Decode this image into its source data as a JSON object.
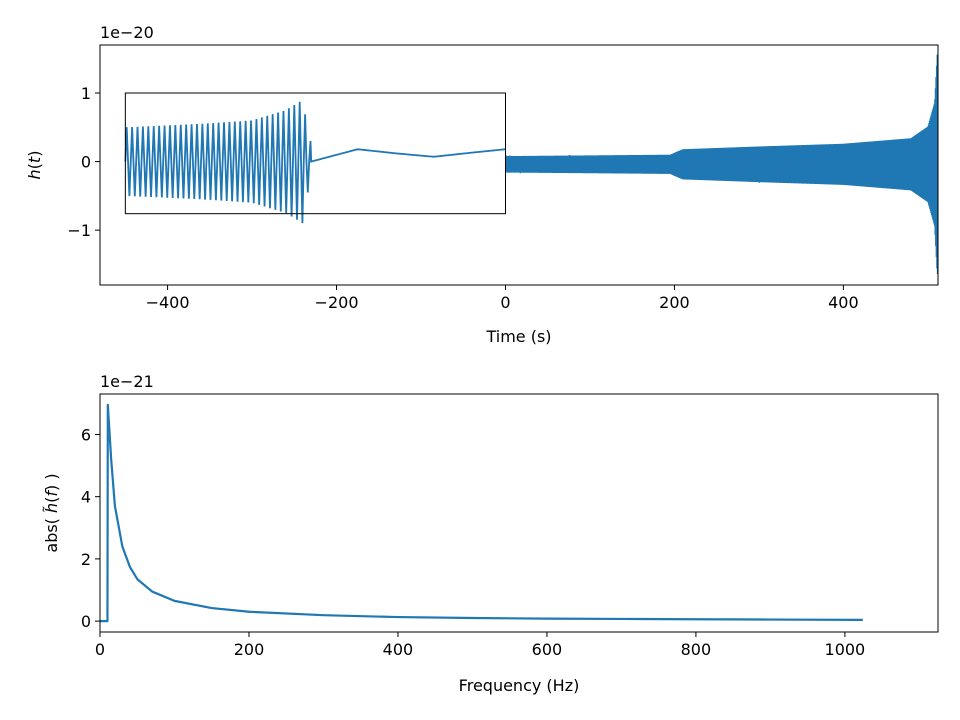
{
  "chart_data": [
    {
      "type": "line",
      "xlabel": "Time (s)",
      "ylabel": "h(t)",
      "ylabel_parts": {
        "name": "h",
        "arg": "t"
      },
      "y_offset_label": "1e−20",
      "xlim": [
        -480,
        512
      ],
      "ylim": [
        -1.8,
        1.7
      ],
      "xticks": [
        -400,
        -200,
        0,
        200,
        400
      ],
      "xtick_labels": [
        "−400",
        "−200",
        "0",
        "200",
        "400"
      ],
      "yticks": [
        -1,
        0,
        1
      ],
      "ytick_labels": [
        "−1",
        "0",
        "1"
      ],
      "color": "#1f77b4",
      "grid": false,
      "envelope": [
        {
          "t": 0,
          "amp": 0.12
        },
        {
          "t": 100,
          "amp": 0.13
        },
        {
          "t": 195,
          "amp": 0.14
        },
        {
          "t": 210,
          "amp": 0.22
        },
        {
          "t": 300,
          "amp": 0.26
        },
        {
          "t": 400,
          "amp": 0.3
        },
        {
          "t": 480,
          "amp": 0.38
        },
        {
          "t": 500,
          "amp": 0.55
        },
        {
          "t": 508,
          "amp": 0.9
        },
        {
          "t": 511,
          "amp": 1.6
        }
      ],
      "envelope_center": -0.04,
      "inset": {
        "x_range": [
          -450,
          0
        ],
        "y_range": [
          -0.76,
          1.0
        ],
        "burst_envelope": [
          {
            "t": -450,
            "amp": 0.5
          },
          {
            "t": -360,
            "amp": 0.55
          },
          {
            "t": -300,
            "amp": 0.6
          },
          {
            "t": -260,
            "amp": 0.75
          },
          {
            "t": -240,
            "amp": 0.9
          },
          {
            "t": -232,
            "amp": 0.3
          }
        ],
        "burst_end": -230,
        "smooth_wave": [
          {
            "t": -230,
            "v": 0.0
          },
          {
            "t": -175,
            "v": 0.18
          },
          {
            "t": -130,
            "v": 0.12
          },
          {
            "t": -85,
            "v": 0.07
          },
          {
            "t": -40,
            "v": 0.13
          },
          {
            "t": 0,
            "v": 0.18
          }
        ]
      }
    },
    {
      "type": "line",
      "xlabel": "Frequency (Hz)",
      "ylabel": "abs( h̃(f) )",
      "ylabel_parts": {
        "prefix": "abs( ",
        "name": "h̃",
        "arg": "f",
        "suffix": " )"
      },
      "y_offset_label": "1e−21",
      "xlim": [
        0,
        1125
      ],
      "ylim": [
        -0.35,
        7.3
      ],
      "xticks": [
        0,
        200,
        400,
        600,
        800,
        1000
      ],
      "xtick_labels": [
        "0",
        "200",
        "400",
        "600",
        "800",
        "1000"
      ],
      "yticks": [
        0,
        2,
        4,
        6
      ],
      "ytick_labels": [
        "0",
        "2",
        "4",
        "6"
      ],
      "color": "#1f77b4",
      "grid": false,
      "points": [
        {
          "x": 0,
          "y": 0.0
        },
        {
          "x": 10,
          "y": 0.0
        },
        {
          "x": 10.5,
          "y": 6.95
        },
        {
          "x": 15,
          "y": 5.2
        },
        {
          "x": 20,
          "y": 3.7
        },
        {
          "x": 30,
          "y": 2.4
        },
        {
          "x": 40,
          "y": 1.75
        },
        {
          "x": 50,
          "y": 1.35
        },
        {
          "x": 70,
          "y": 0.95
        },
        {
          "x": 100,
          "y": 0.65
        },
        {
          "x": 150,
          "y": 0.42
        },
        {
          "x": 200,
          "y": 0.3
        },
        {
          "x": 300,
          "y": 0.19
        },
        {
          "x": 400,
          "y": 0.13
        },
        {
          "x": 500,
          "y": 0.1
        },
        {
          "x": 600,
          "y": 0.08
        },
        {
          "x": 700,
          "y": 0.07
        },
        {
          "x": 800,
          "y": 0.06
        },
        {
          "x": 900,
          "y": 0.05
        },
        {
          "x": 1024,
          "y": 0.04
        }
      ]
    }
  ]
}
